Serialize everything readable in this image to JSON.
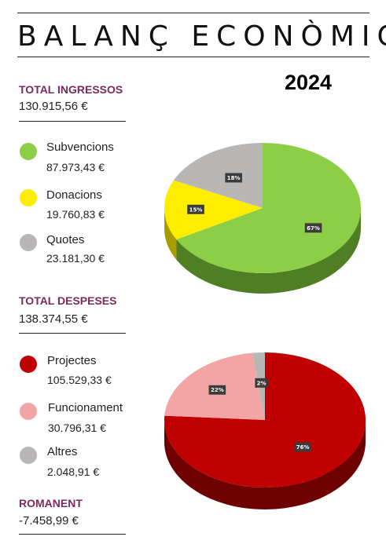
{
  "header": {
    "title": "BALANÇ ECONÒMIC",
    "year": "2024"
  },
  "income": {
    "label": "TOTAL INGRESSOS",
    "total": "130.915,56 €",
    "items": [
      {
        "name": "Subvencions",
        "value": "87.973,43 €",
        "color": "#8cce45"
      },
      {
        "name": "Donacions",
        "value": "19.760,83 €",
        "color": "#ffed00"
      },
      {
        "name": "Quotes",
        "value": "23.181,30 €",
        "color": "#b9b6b6"
      }
    ]
  },
  "expenses": {
    "label": "TOTAL DESPESES",
    "total": "138.374,55 €",
    "items": [
      {
        "name": "Projectes",
        "value": "105.529,33 €",
        "color": "#c00000"
      },
      {
        "name": "Funcionament",
        "value": "30.796,31 €",
        "color": "#f3a5a5"
      },
      {
        "name": "Altres",
        "value": "2.048,91 €",
        "color": "#b9b6b6"
      }
    ]
  },
  "remainder": {
    "label": "ROMANENT",
    "value": "-7.458,99 €"
  },
  "chart_data": [
    {
      "type": "pie",
      "categories": [
        "Subvencions",
        "Donacions",
        "Quotes"
      ],
      "values": [
        67,
        15,
        18
      ],
      "labels": [
        "67%",
        "15%",
        "18%"
      ],
      "colors": [
        "#8cce45",
        "#ffed00",
        "#b9b6b6"
      ],
      "side_colors": [
        "#4f7e24",
        "#a89c00",
        "#7d7b7b"
      ]
    },
    {
      "type": "pie",
      "categories": [
        "Projectes",
        "Funcionament",
        "Altres"
      ],
      "values": [
        76,
        22,
        2
      ],
      "labels": [
        "76%",
        "22%",
        "2%"
      ],
      "colors": [
        "#c00000",
        "#f3a5a5",
        "#b9b6b6"
      ],
      "side_colors": [
        "#6e0000",
        "#b87070",
        "#7d7b7b"
      ]
    }
  ]
}
